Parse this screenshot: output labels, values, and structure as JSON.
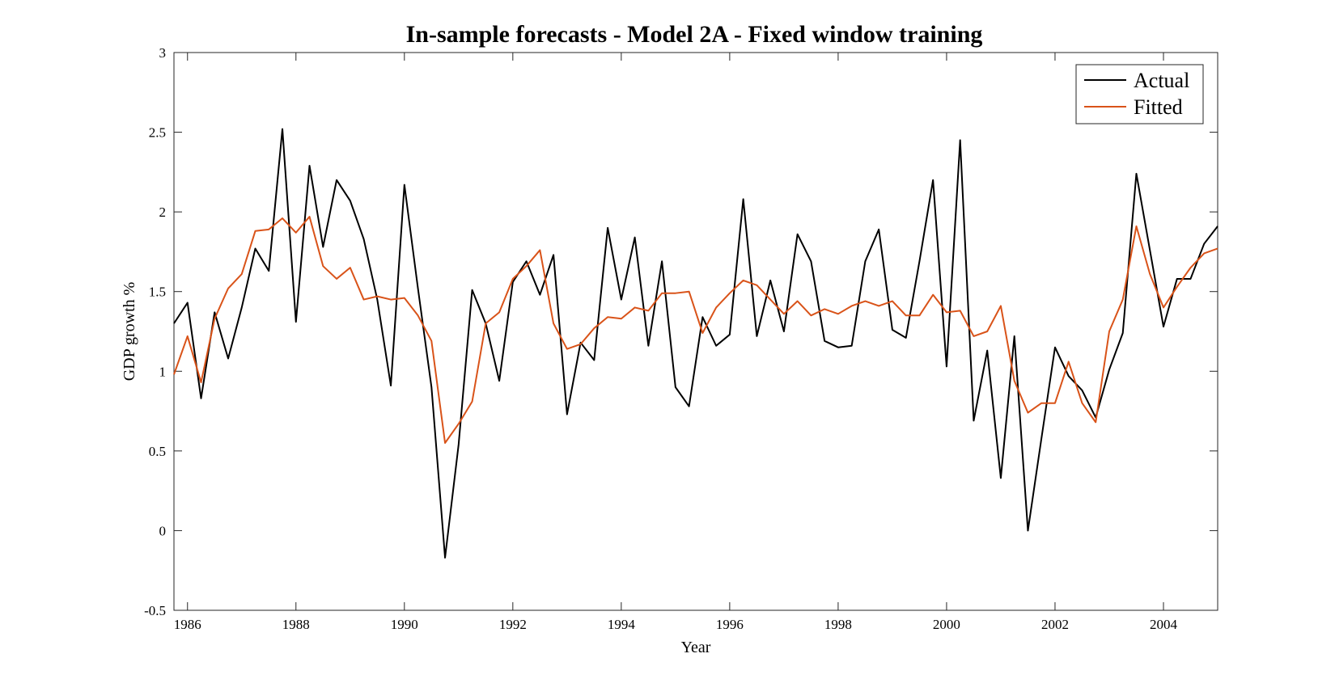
{
  "chart_data": {
    "type": "line",
    "title": "In-sample forecasts - Model 2A - Fixed window training",
    "xlabel": "Year",
    "ylabel": "GDP growth %",
    "xlim": [
      1985.75,
      2005
    ],
    "ylim": [
      -0.5,
      3
    ],
    "xticks": [
      1986,
      1988,
      1990,
      1992,
      1994,
      1996,
      1998,
      2000,
      2002,
      2004
    ],
    "xtick_labels": [
      "1986",
      "1988",
      "1990",
      "1992",
      "1994",
      "1996",
      "1998",
      "2000",
      "2002",
      "2004"
    ],
    "yticks": [
      -0.5,
      0,
      0.5,
      1,
      1.5,
      2,
      2.5,
      3
    ],
    "ytick_labels": [
      "-0.5",
      "0",
      "0.5",
      "1",
      "1.5",
      "2",
      "2.5",
      "3"
    ],
    "grid": false,
    "legend_position": "top-right",
    "x_start": 1985.75,
    "x_step": 0.25,
    "series": [
      {
        "name": "Actual",
        "color": "#000000",
        "values": [
          1.3,
          1.43,
          0.83,
          1.37,
          1.08,
          1.4,
          1.77,
          1.63,
          2.52,
          1.31,
          2.29,
          1.78,
          2.2,
          2.07,
          1.83,
          1.45,
          0.91,
          2.17,
          1.52,
          0.9,
          -0.17,
          0.54,
          1.51,
          1.3,
          0.94,
          1.56,
          1.69,
          1.48,
          1.73,
          0.73,
          1.18,
          1.07,
          1.9,
          1.45,
          1.84,
          1.16,
          1.69,
          0.9,
          0.78,
          1.34,
          1.16,
          1.23,
          2.08,
          1.22,
          1.57,
          1.25,
          1.86,
          1.69,
          1.19,
          1.15,
          1.16,
          1.69,
          1.89,
          1.26,
          1.21,
          1.69,
          2.2,
          1.03,
          2.45,
          0.69,
          1.13,
          0.33,
          1.22,
          0.0,
          0.58,
          1.15,
          0.97,
          0.88,
          0.71,
          1.01,
          1.24,
          2.24,
          1.76,
          1.28,
          1.58,
          1.58,
          1.8,
          1.91
        ]
      },
      {
        "name": "Fitted",
        "color": "#D95319",
        "values": [
          0.98,
          1.22,
          0.93,
          1.33,
          1.52,
          1.61,
          1.88,
          1.89,
          1.96,
          1.87,
          1.97,
          1.66,
          1.58,
          1.65,
          1.45,
          1.47,
          1.45,
          1.46,
          1.35,
          1.19,
          0.55,
          0.67,
          0.81,
          1.3,
          1.37,
          1.58,
          1.66,
          1.76,
          1.3,
          1.14,
          1.17,
          1.27,
          1.34,
          1.33,
          1.4,
          1.38,
          1.49,
          1.49,
          1.5,
          1.24,
          1.4,
          1.49,
          1.57,
          1.54,
          1.45,
          1.36,
          1.44,
          1.35,
          1.39,
          1.36,
          1.41,
          1.44,
          1.41,
          1.44,
          1.35,
          1.35,
          1.48,
          1.37,
          1.38,
          1.22,
          1.25,
          1.41,
          0.94,
          0.74,
          0.8,
          0.8,
          1.06,
          0.8,
          0.68,
          1.25,
          1.45,
          1.91,
          1.61,
          1.4,
          1.53,
          1.65,
          1.74,
          1.77
        ]
      }
    ]
  }
}
